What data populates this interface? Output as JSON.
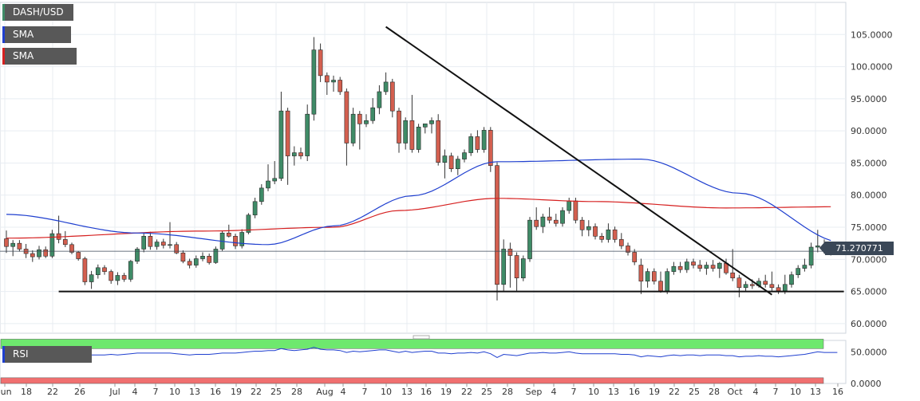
{
  "chart_data": [
    {
      "type": "candlestick",
      "symbol": "DASH/USD",
      "indicators": [
        {
          "name": "SMA (50,0)",
          "color": "#1f3fcf"
        },
        {
          "name": "SMA (100,0)",
          "color": "#d62020"
        }
      ],
      "colors": {
        "up": "#3f8b67",
        "down": "#d35f4f",
        "wick": "#333333"
      },
      "last_price": "71.270771",
      "y_axis": {
        "ylim": [
          58.5,
          110
        ],
        "ticks": [
          "60.0000",
          "65.0000",
          "70.0000",
          "75.0000",
          "80.0000",
          "85.0000",
          "90.0000",
          "95.0000",
          "100.0000",
          "105.0000"
        ]
      },
      "x_axis": {
        "ticks": [
          "Jun",
          "18",
          "22",
          "26",
          "Jul",
          "4",
          "7",
          "10",
          "13",
          "16",
          "19",
          "22",
          "25",
          "28",
          "Aug",
          "4",
          "7",
          "10",
          "13",
          "16",
          "19",
          "22",
          "25",
          "28",
          "Sep",
          "4",
          "7",
          "10",
          "13",
          "16",
          "19",
          "22",
          "25",
          "28",
          "Oct",
          "4",
          "7",
          "10",
          "13",
          "16"
        ]
      },
      "candles": [
        [
          73.2,
          74.5,
          71.0,
          72.0
        ],
        [
          72.0,
          73.0,
          70.5,
          72.5
        ],
        [
          72.5,
          73.0,
          71.2,
          71.6
        ],
        [
          71.6,
          72.4,
          70.2,
          70.9
        ],
        [
          70.9,
          71.4,
          69.6,
          70.4
        ],
        [
          70.4,
          72.1,
          70.0,
          71.5
        ],
        [
          71.5,
          72.0,
          70.2,
          70.5
        ],
        [
          70.5,
          74.6,
          70.2,
          74.0
        ],
        [
          74.0,
          76.8,
          72.5,
          73.1
        ],
        [
          73.1,
          74.4,
          71.9,
          72.3
        ],
        [
          72.3,
          72.6,
          70.8,
          71.1
        ],
        [
          71.1,
          71.3,
          69.8,
          70.1
        ],
        [
          70.1,
          70.4,
          66.0,
          66.5
        ],
        [
          66.5,
          68.2,
          65.4,
          67.6
        ],
        [
          67.6,
          69.2,
          67.0,
          68.7
        ],
        [
          68.7,
          69.1,
          67.6,
          68.1
        ],
        [
          68.1,
          68.4,
          66.2,
          66.7
        ],
        [
          66.7,
          68.0,
          66.0,
          67.5
        ],
        [
          67.5,
          67.9,
          66.5,
          66.9
        ],
        [
          66.9,
          69.9,
          66.5,
          69.7
        ],
        [
          69.7,
          71.9,
          69.3,
          71.6
        ],
        [
          71.6,
          74.2,
          71.1,
          73.6
        ],
        [
          73.6,
          74.3,
          71.5,
          72.0
        ],
        [
          72.0,
          73.1,
          71.5,
          72.7
        ],
        [
          72.7,
          73.2,
          71.7,
          72.2
        ],
        [
          72.2,
          75.8,
          71.7,
          72.3
        ],
        [
          72.3,
          72.7,
          70.8,
          71.0
        ],
        [
          71.0,
          71.4,
          69.4,
          69.7
        ],
        [
          69.7,
          70.1,
          68.6,
          69.1
        ],
        [
          69.1,
          70.6,
          68.7,
          70.1
        ],
        [
          70.1,
          71.1,
          69.7,
          70.5
        ],
        [
          70.5,
          70.9,
          69.2,
          69.5
        ],
        [
          69.5,
          72.0,
          69.3,
          71.6
        ],
        [
          71.6,
          74.4,
          71.3,
          74.1
        ],
        [
          74.1,
          75.4,
          73.4,
          73.6
        ],
        [
          73.6,
          74.0,
          71.6,
          72.1
        ],
        [
          72.1,
          74.7,
          71.7,
          74.2
        ],
        [
          74.2,
          77.2,
          73.9,
          76.9
        ],
        [
          76.9,
          79.6,
          76.4,
          79.0
        ],
        [
          79.0,
          81.7,
          78.5,
          81.1
        ],
        [
          81.1,
          84.8,
          80.6,
          82.2
        ],
        [
          82.2,
          85.3,
          81.7,
          82.6
        ],
        [
          82.6,
          96.1,
          82.2,
          93.1
        ],
        [
          93.1,
          93.6,
          81.6,
          86.1
        ],
        [
          86.1,
          87.6,
          84.6,
          86.6
        ],
        [
          86.6,
          87.4,
          85.6,
          86.1
        ],
        [
          86.1,
          94.1,
          85.3,
          92.6
        ],
        [
          92.6,
          104.6,
          91.6,
          102.6
        ],
        [
          102.6,
          103.6,
          97.6,
          98.6
        ],
        [
          98.6,
          99.1,
          95.6,
          97.6
        ],
        [
          97.6,
          98.6,
          96.1,
          97.9
        ],
        [
          97.9,
          98.4,
          95.6,
          96.1
        ],
        [
          96.1,
          96.6,
          84.6,
          88.1
        ],
        [
          88.1,
          93.6,
          87.6,
          92.6
        ],
        [
          92.6,
          93.1,
          87.1,
          91.1
        ],
        [
          91.1,
          92.6,
          90.6,
          91.6
        ],
        [
          91.6,
          95.1,
          91.1,
          93.6
        ],
        [
          93.6,
          97.1,
          92.6,
          96.1
        ],
        [
          96.1,
          99.1,
          95.6,
          97.6
        ],
        [
          97.6,
          98.1,
          92.1,
          93.1
        ],
        [
          93.1,
          93.6,
          86.6,
          88.1
        ],
        [
          88.1,
          92.1,
          87.1,
          91.6
        ],
        [
          91.6,
          95.6,
          86.6,
          87.1
        ],
        [
          87.1,
          91.1,
          86.6,
          90.6
        ],
        [
          90.6,
          91.1,
          89.6,
          91.1
        ],
        [
          91.1,
          92.1,
          89.6,
          91.6
        ],
        [
          91.6,
          92.6,
          84.6,
          85.1
        ],
        [
          85.1,
          87.1,
          82.6,
          86.1
        ],
        [
          86.1,
          86.6,
          83.6,
          84.1
        ],
        [
          84.1,
          86.1,
          83.1,
          85.6
        ],
        [
          85.6,
          87.1,
          85.1,
          86.6
        ],
        [
          86.6,
          89.6,
          86.1,
          89.1
        ],
        [
          89.1,
          90.1,
          86.6,
          87.1
        ],
        [
          87.1,
          90.6,
          86.6,
          90.1
        ],
        [
          90.1,
          90.6,
          83.6,
          84.6
        ],
        [
          84.6,
          85.1,
          63.6,
          66.1
        ],
        [
          66.1,
          73.1,
          65.1,
          71.6
        ],
        [
          71.6,
          72.6,
          65.6,
          70.6
        ],
        [
          70.6,
          71.1,
          65.1,
          67.1
        ],
        [
          67.1,
          70.6,
          66.6,
          70.1
        ],
        [
          70.1,
          76.6,
          69.6,
          76.1
        ],
        [
          76.1,
          78.1,
          74.6,
          75.1
        ],
        [
          75.1,
          77.1,
          74.1,
          76.6
        ],
        [
          76.6,
          78.1,
          75.6,
          76.1
        ],
        [
          76.1,
          77.1,
          75.1,
          75.6
        ],
        [
          75.6,
          78.1,
          75.1,
          77.6
        ],
        [
          77.6,
          79.6,
          77.1,
          79.1
        ],
        [
          79.1,
          79.6,
          75.6,
          76.1
        ],
        [
          76.1,
          76.6,
          73.6,
          74.6
        ],
        [
          74.6,
          76.1,
          73.6,
          75.1
        ],
        [
          75.1,
          75.6,
          73.1,
          73.6
        ],
        [
          73.6,
          74.1,
          72.6,
          73.1
        ],
        [
          73.1,
          75.6,
          72.6,
          74.6
        ],
        [
          74.6,
          75.1,
          72.6,
          73.1
        ],
        [
          73.1,
          74.1,
          71.6,
          72.1
        ],
        [
          72.1,
          72.6,
          70.6,
          71.1
        ],
        [
          71.1,
          71.6,
          69.1,
          69.6
        ],
        [
          69.1,
          70.1,
          64.6,
          66.6
        ],
        [
          66.6,
          68.6,
          65.6,
          68.1
        ],
        [
          68.1,
          68.6,
          66.1,
          66.6
        ],
        [
          66.6,
          68.1,
          64.8,
          65.1
        ],
        [
          65.1,
          68.6,
          64.6,
          68.1
        ],
        [
          68.1,
          69.6,
          67.6,
          68.9
        ],
        [
          68.9,
          69.6,
          67.9,
          68.4
        ],
        [
          68.4,
          70.1,
          67.9,
          69.6
        ],
        [
          69.6,
          70.1,
          68.6,
          69.1
        ],
        [
          69.1,
          69.9,
          68.1,
          68.6
        ],
        [
          68.6,
          69.6,
          67.6,
          69.1
        ],
        [
          69.1,
          69.9,
          68.1,
          68.6
        ],
        [
          68.6,
          69.6,
          67.1,
          69.4
        ],
        [
          69.4,
          70.1,
          67.6,
          67.9
        ],
        [
          67.9,
          71.6,
          66.6,
          67.1
        ],
        [
          67.1,
          67.6,
          64.1,
          65.6
        ],
        [
          65.6,
          66.6,
          65.1,
          66.1
        ],
        [
          66.1,
          66.9,
          65.4,
          65.9
        ],
        [
          65.9,
          67.1,
          65.6,
          66.6
        ],
        [
          66.6,
          67.6,
          65.6,
          66.1
        ],
        [
          66.1,
          68.1,
          65.1,
          65.6
        ],
        [
          65.6,
          66.1,
          64.6,
          65.1
        ],
        [
          65.1,
          67.6,
          64.6,
          66.1
        ],
        [
          66.1,
          68.1,
          65.6,
          67.6
        ],
        [
          67.6,
          69.1,
          67.1,
          68.6
        ],
        [
          68.6,
          70.1,
          68.1,
          69.1
        ],
        [
          69.1,
          72.6,
          68.6,
          71.9
        ],
        [
          71.9,
          74.6,
          71.1,
          72.1
        ],
        [
          72.1,
          73.1,
          70.9,
          71.3
        ],
        [
          71.3,
          72.0,
          70.6,
          71.27
        ]
      ],
      "sma50": [
        [
          0,
          77.0
        ],
        [
          20,
          74.1
        ],
        [
          40,
          72.3
        ],
        [
          50,
          75.2
        ],
        [
          62,
          79.9
        ],
        [
          75,
          85.2
        ],
        [
          97,
          85.6
        ],
        [
          112,
          80.3
        ],
        [
          128,
          72.6
        ]
      ],
      "sma100": [
        [
          0,
          73.3
        ],
        [
          30,
          74.4
        ],
        [
          50,
          75.0
        ],
        [
          60,
          77.6
        ],
        [
          75,
          79.5
        ],
        [
          90,
          79.0
        ],
        [
          110,
          78.0
        ],
        [
          128,
          78.2
        ]
      ],
      "trendlines": [
        {
          "x": [
            58,
            117
          ],
          "y": [
            106.2,
            64.5
          ]
        },
        {
          "x": [
            8,
            128
          ],
          "y": [
            65.0,
            65.0
          ]
        }
      ]
    },
    {
      "type": "line",
      "indicator": "RSI (14,70,30,1)",
      "ylim": [
        0,
        68
      ],
      "ticks": [
        "50.0000",
        "0.0000"
      ],
      "zones": [
        {
          "from": 70,
          "to": 55,
          "color": "#6ee86e"
        },
        {
          "from": 9,
          "to": 0,
          "color": "#f07070"
        }
      ],
      "values": [
        48,
        49,
        48,
        47,
        47,
        48,
        49,
        49,
        48,
        47,
        46,
        45,
        44,
        45,
        45,
        45,
        46,
        45,
        46,
        47,
        48,
        48,
        48,
        48,
        48,
        48,
        47,
        46,
        45,
        46,
        46,
        46,
        47,
        48,
        48,
        48,
        49,
        50,
        51,
        51,
        52,
        52,
        55,
        53,
        52,
        53,
        54,
        57,
        54,
        53,
        53,
        52,
        49,
        51,
        50,
        51,
        52,
        53,
        53,
        51,
        49,
        51,
        49,
        50,
        51,
        51,
        48,
        48,
        47,
        48,
        48,
        49,
        48,
        50,
        47,
        41,
        46,
        45,
        44,
        46,
        48,
        48,
        49,
        48,
        48,
        49,
        50,
        48,
        47,
        47,
        47,
        47,
        47,
        47,
        46,
        46,
        45,
        42,
        44,
        43,
        42,
        44,
        45,
        44,
        45,
        45,
        44,
        45,
        45,
        45,
        44,
        44,
        42,
        43,
        43,
        44,
        43,
        43,
        42,
        43,
        44,
        45,
        46,
        48,
        50,
        49,
        49,
        49
      ]
    }
  ]
}
